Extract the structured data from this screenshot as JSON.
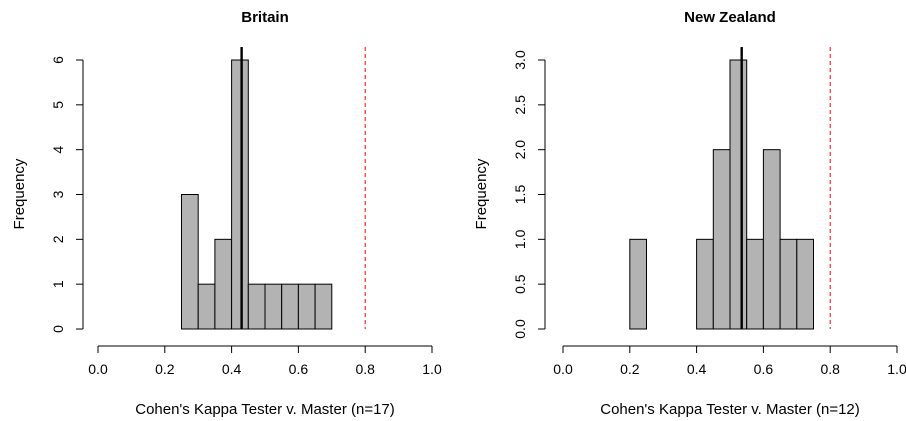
{
  "chart_data": [
    {
      "type": "bar",
      "title": "Britain",
      "xlabel": "Cohen's Kappa Tester v. Master (n=17)",
      "ylabel": "Frequency",
      "xlim": [
        0,
        1
      ],
      "ylim": [
        0,
        6
      ],
      "x_ticks": [
        "0.0",
        "0.2",
        "0.4",
        "0.6",
        "0.8",
        "1.0"
      ],
      "y_ticks": [
        "0",
        "1",
        "2",
        "3",
        "4",
        "5",
        "6"
      ],
      "bin_width": 0.05,
      "bin_starts": [
        0.25,
        0.3,
        0.35,
        0.4,
        0.45,
        0.5,
        0.55,
        0.6,
        0.65
      ],
      "values": [
        3,
        1,
        2,
        6,
        1,
        1,
        1,
        1,
        1
      ],
      "mean_line": 0.43,
      "reference_line": 0.8,
      "bar_color": "#b3b3b3",
      "reference_line_color": "#ff0000"
    },
    {
      "type": "bar",
      "title": "New Zealand",
      "xlabel": "Cohen's Kappa Tester v. Master (n=12)",
      "ylabel": "Frequency",
      "xlim": [
        0,
        1
      ],
      "ylim": [
        0,
        3
      ],
      "x_ticks": [
        "0.0",
        "0.2",
        "0.4",
        "0.6",
        "0.8",
        "1.0"
      ],
      "y_ticks": [
        "0.0",
        "0.5",
        "1.0",
        "1.5",
        "2.0",
        "2.5",
        "3.0"
      ],
      "bin_width": 0.05,
      "bin_starts": [
        0.2,
        0.25,
        0.3,
        0.35,
        0.4,
        0.45,
        0.5,
        0.55,
        0.6,
        0.65,
        0.7
      ],
      "values": [
        1,
        0,
        0,
        0,
        1,
        2,
        3,
        1,
        2,
        1,
        1
      ],
      "mean_line": 0.535,
      "reference_line": 0.8,
      "bar_color": "#b3b3b3",
      "reference_line_color": "#ff0000"
    }
  ]
}
